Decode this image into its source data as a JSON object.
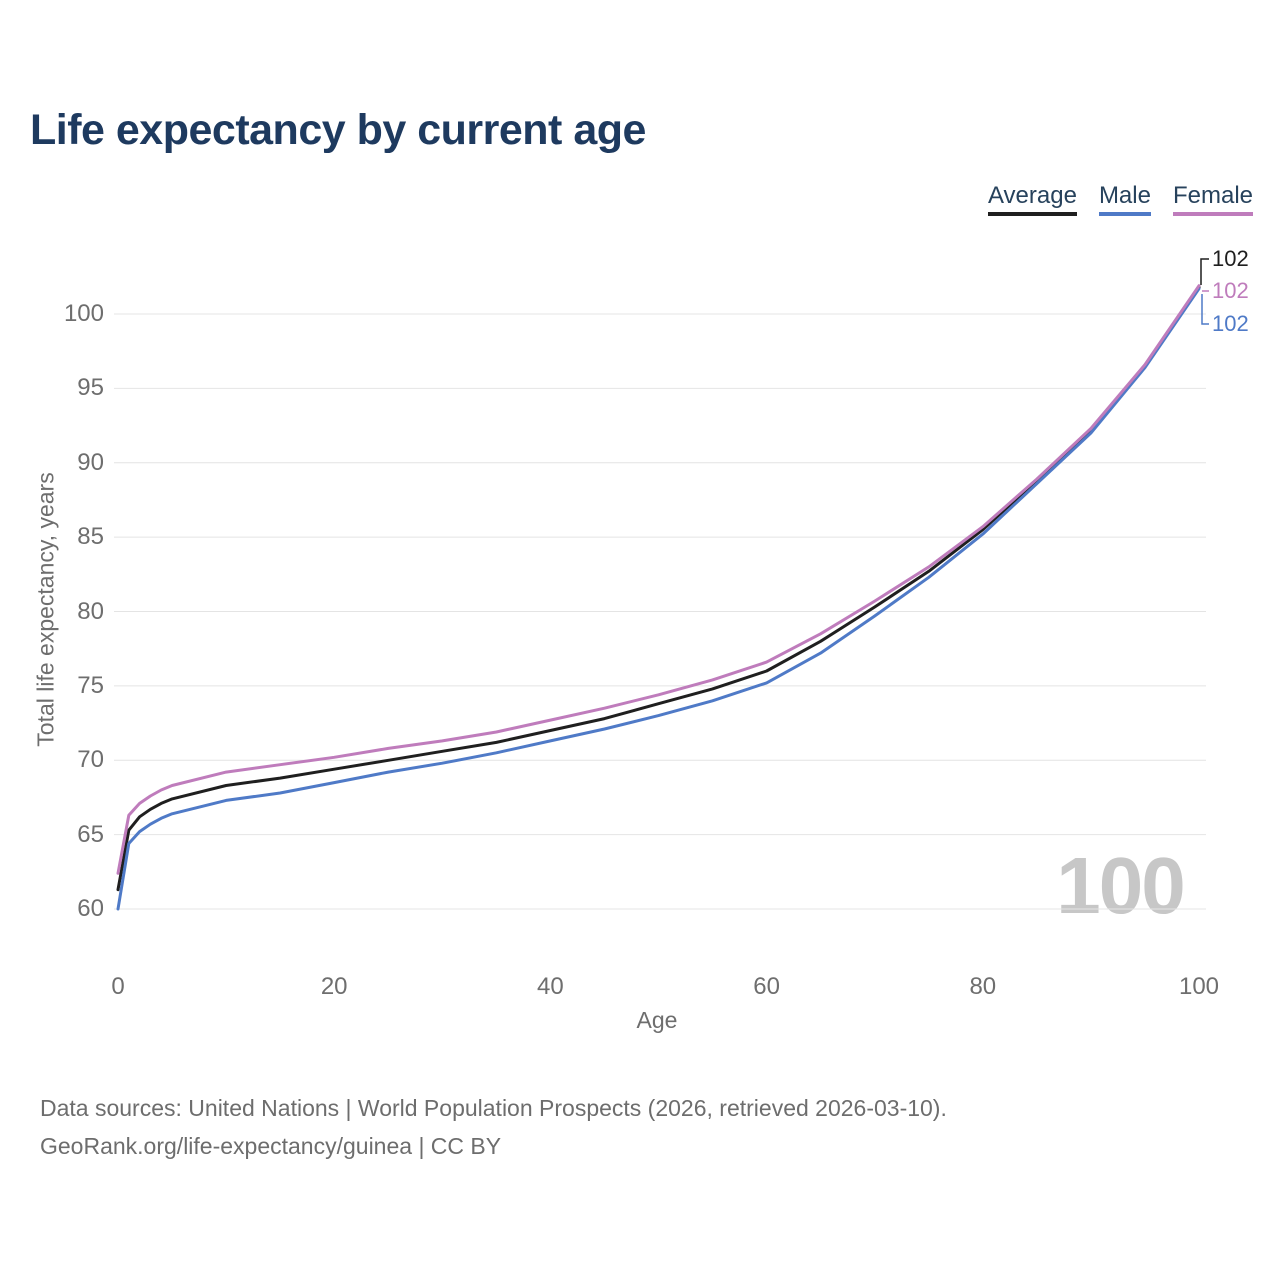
{
  "title": "Life expectancy by current age",
  "legend": {
    "items": [
      {
        "label": "Average",
        "color": "#1f1f1f"
      },
      {
        "label": "Male",
        "color": "#4f7ac7"
      },
      {
        "label": "Female",
        "color": "#bf7cbc"
      }
    ]
  },
  "watermark": "100",
  "footer": {
    "line1": "Data sources: United Nations | World Population Prospects (2026, retrieved 2026-03-10).",
    "line2": "GeoRank.org/life-expectancy/guinea | CC BY"
  },
  "colors": {
    "title_text": "#1e3a5f",
    "legend_text": "#27425c",
    "axis_text": "#6e6e6e",
    "gridline": "#e4e4e4",
    "watermark_text": "#c7c7c7",
    "average_line": "#1f1f1f",
    "male_line": "#4f7ac7",
    "female_line": "#bf7cbc"
  },
  "chart_data": {
    "type": "line",
    "title": "Life expectancy by current age",
    "xlabel": "Age",
    "ylabel": "Total life expectancy, years",
    "x": [
      0,
      1,
      2,
      3,
      4,
      5,
      10,
      15,
      20,
      25,
      30,
      35,
      40,
      45,
      50,
      55,
      60,
      65,
      70,
      75,
      80,
      85,
      90,
      95,
      100
    ],
    "x_ticks": [
      0,
      20,
      40,
      60,
      80,
      100
    ],
    "y_ticks": [
      60,
      65,
      70,
      75,
      80,
      85,
      90,
      95,
      100
    ],
    "xlim": [
      0,
      100
    ],
    "ylim": [
      60,
      102
    ],
    "grid": "horizontal",
    "legend_position": "top-right",
    "series": [
      {
        "name": "Average",
        "color": "#1f1f1f",
        "end_label": "102",
        "values": [
          61.3,
          65.3,
          66.2,
          66.7,
          67.1,
          67.4,
          68.3,
          68.8,
          69.4,
          70.0,
          70.6,
          71.2,
          72.0,
          72.8,
          73.8,
          74.8,
          76.0,
          78.0,
          80.3,
          82.7,
          85.5,
          88.8,
          92.2,
          96.5,
          101.8
        ]
      },
      {
        "name": "Male",
        "color": "#4f7ac7",
        "end_label": "102",
        "values": [
          60.0,
          64.4,
          65.2,
          65.7,
          66.1,
          66.4,
          67.3,
          67.8,
          68.5,
          69.2,
          69.8,
          70.5,
          71.3,
          72.1,
          73.0,
          74.0,
          75.2,
          77.2,
          79.7,
          82.3,
          85.2,
          88.6,
          92.0,
          96.4,
          101.7
        ]
      },
      {
        "name": "Female",
        "color": "#bf7cbc",
        "end_label": "102",
        "values": [
          62.4,
          66.3,
          67.1,
          67.6,
          68.0,
          68.3,
          69.2,
          69.7,
          70.2,
          70.8,
          71.3,
          71.9,
          72.7,
          73.5,
          74.4,
          75.4,
          76.6,
          78.5,
          80.7,
          83.0,
          85.7,
          88.9,
          92.3,
          96.6,
          101.9
        ]
      }
    ]
  }
}
